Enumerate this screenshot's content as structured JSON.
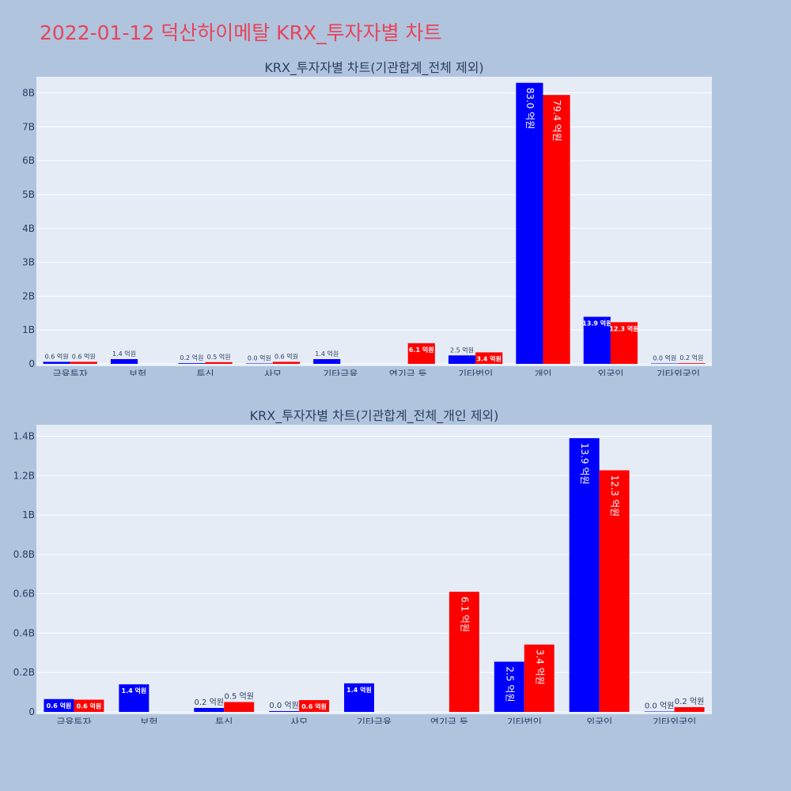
{
  "page_title": "2022-01-12 덕산하이메탈 KRX_투자자별 차트",
  "colors": {
    "buy": "#0000ff",
    "sell": "#ff0000",
    "plot_bg": "#e5ecf6",
    "page_bg": "#b0c4de",
    "title": "#e8445a"
  },
  "chart_data": [
    {
      "type": "bar",
      "title": "KRX_투자자별 차트(기관합계_전체 제외)",
      "categories": [
        "금융투자",
        "보험",
        "투신",
        "사모",
        "기타금융",
        "연기금 등",
        "기타법인",
        "개인",
        "외국인",
        "기타외국인"
      ],
      "series": [
        {
          "color": "#0000ff",
          "values": [
            0.06,
            0.14,
            0.02,
            0.0,
            0.14,
            null,
            0.25,
            8.3,
            1.39,
            0.0
          ],
          "labels": [
            "0.6 억원",
            "1.4 억원",
            "0.2 억원",
            "0.0 억원",
            "1.4 억원",
            "",
            "2.5 억원",
            "83.0 억원",
            "13.9 억원",
            "0.0 억원"
          ]
        },
        {
          "color": "#ff0000",
          "values": [
            0.06,
            null,
            0.05,
            0.06,
            null,
            0.61,
            0.34,
            7.94,
            1.23,
            0.02
          ],
          "labels": [
            "0.6 억원",
            "",
            "0.5 억원",
            "0.6 억원",
            "",
            "6.1 억원",
            "3.4 억원",
            "79.4 억원",
            "12.3 억원",
            "0.2 억원"
          ]
        }
      ],
      "yticks": [
        0,
        1,
        2,
        3,
        4,
        5,
        6,
        7,
        8
      ],
      "ytick_labels": [
        "0",
        "1B",
        "2B",
        "3B",
        "4B",
        "5B",
        "6B",
        "7B",
        "8B"
      ],
      "ylim": [
        0,
        8.2
      ],
      "grid": true,
      "unit": "B"
    },
    {
      "type": "bar",
      "title": "KRX_투자자별 차트(기관합계_전체_개인 제외)",
      "categories": [
        "금융투자",
        "보험",
        "투신",
        "사모",
        "기타금융",
        "연기금 등",
        "기타법인",
        "외국인",
        "기타외국인"
      ],
      "series": [
        {
          "color": "#0000ff",
          "values": [
            0.065,
            0.14,
            0.02,
            0.004,
            0.145,
            null,
            0.255,
            1.39,
            0.002
          ],
          "labels": [
            "0.6 억원",
            "1.4 억원",
            "0.2 억원",
            "0.0 억원",
            "1.4 억원",
            "",
            "2.5 억원",
            "13.9 억원",
            "0.0 억원"
          ]
        },
        {
          "color": "#ff0000",
          "values": [
            0.062,
            null,
            0.05,
            0.06,
            null,
            0.61,
            0.342,
            1.227,
            0.024
          ],
          "labels": [
            "0.6 억원",
            "",
            "0.5 억원",
            "0.6 억원",
            "",
            "6.1 억원",
            "3.4 억원",
            "12.3 억원",
            "0.2 억원"
          ]
        }
      ],
      "yticks": [
        0,
        0.2,
        0.4,
        0.6,
        0.8,
        1.0,
        1.2,
        1.4
      ],
      "ytick_labels": [
        "0",
        "0.2B",
        "0.4B",
        "0.6B",
        "0.8B",
        "1B",
        "1.2B",
        "1.4B"
      ],
      "ylim": [
        0,
        1.41
      ],
      "grid": true,
      "unit": "B"
    }
  ]
}
